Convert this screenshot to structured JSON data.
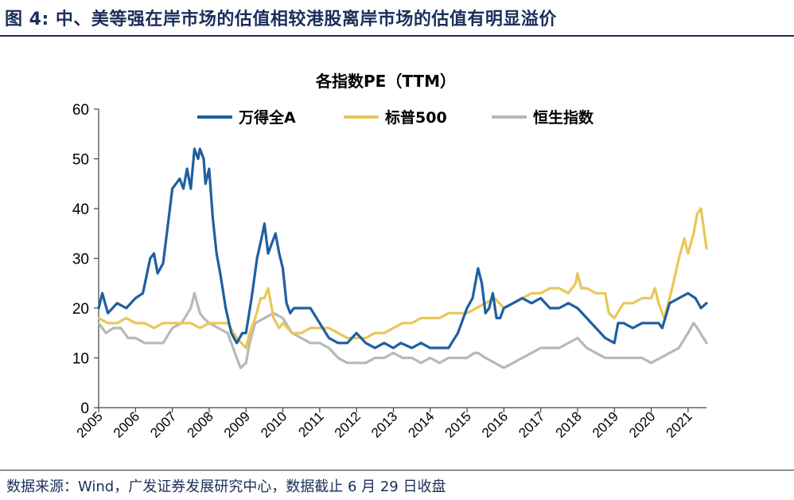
{
  "figure": {
    "title": "图 4: 中、美等强在岸市场的估值相较港股离岸市场的估值有明显溢价",
    "source": "数据来源：Wind，广发证券发展研究中心，数据截止 6 月 29 日收盘"
  },
  "chart_data": {
    "type": "line",
    "title": "各指数PE（TTM）",
    "xlabel": "",
    "ylabel": "",
    "ylim": [
      0,
      60
    ],
    "yticks": [
      0,
      10,
      20,
      30,
      40,
      50,
      60
    ],
    "xlim": [
      2005,
      2021.5
    ],
    "xticks": [
      "2005",
      "2006",
      "2007",
      "2008",
      "2009",
      "2010",
      "2011",
      "2012",
      "2013",
      "2014",
      "2015",
      "2016",
      "2017",
      "2018",
      "2019",
      "2020",
      "2021"
    ],
    "legend_position": "top",
    "grid": false,
    "series": [
      {
        "name": "万得全A",
        "color": "#1f5fa0",
        "x": [
          2005.0,
          2005.1,
          2005.25,
          2005.5,
          2005.75,
          2006.0,
          2006.2,
          2006.4,
          2006.5,
          2006.6,
          2006.75,
          2006.9,
          2007.0,
          2007.1,
          2007.2,
          2007.3,
          2007.4,
          2007.5,
          2007.6,
          2007.7,
          2007.75,
          2007.85,
          2007.9,
          2008.0,
          2008.1,
          2008.2,
          2008.3,
          2008.45,
          2008.6,
          2008.75,
          2008.9,
          2009.0,
          2009.15,
          2009.3,
          2009.45,
          2009.5,
          2009.6,
          2009.7,
          2009.8,
          2009.9,
          2010.0,
          2010.1,
          2010.2,
          2010.3,
          2010.5,
          2010.75,
          2011.0,
          2011.25,
          2011.5,
          2011.75,
          2012.0,
          2012.25,
          2012.5,
          2012.75,
          2013.0,
          2013.2,
          2013.5,
          2013.75,
          2014.0,
          2014.25,
          2014.5,
          2014.75,
          2015.0,
          2015.15,
          2015.3,
          2015.4,
          2015.5,
          2015.6,
          2015.7,
          2015.8,
          2015.9,
          2016.0,
          2016.25,
          2016.5,
          2016.75,
          2017.0,
          2017.25,
          2017.5,
          2017.75,
          2018.0,
          2018.25,
          2018.5,
          2018.75,
          2019.0,
          2019.1,
          2019.25,
          2019.5,
          2019.75,
          2020.0,
          2020.2,
          2020.3,
          2020.5,
          2020.75,
          2021.0,
          2021.2,
          2021.35,
          2021.5
        ],
        "values": [
          20,
          23,
          19,
          21,
          20,
          22,
          23,
          30,
          31,
          27,
          29,
          38,
          44,
          45,
          46,
          44,
          48,
          44,
          52,
          50,
          52,
          50,
          45,
          48,
          38,
          31,
          27,
          20,
          15,
          13,
          15,
          15,
          22,
          30,
          35,
          37,
          31,
          33,
          35,
          31,
          28,
          21,
          19,
          20,
          20,
          20,
          17,
          14,
          13,
          13,
          15,
          13,
          12,
          13,
          12,
          13,
          12,
          13,
          12,
          12,
          12,
          15,
          20,
          22,
          28,
          25,
          19,
          20,
          23,
          18,
          18,
          20,
          21,
          22,
          21,
          22,
          20,
          20,
          21,
          20,
          18,
          16,
          14,
          13,
          17,
          17,
          16,
          17,
          17,
          17,
          16,
          21,
          22,
          23,
          22,
          20,
          21
        ]
      },
      {
        "name": "标普500",
        "color": "#e8c75a",
        "x": [
          2005.0,
          2005.25,
          2005.5,
          2005.75,
          2006.0,
          2006.25,
          2006.5,
          2006.75,
          2007.0,
          2007.25,
          2007.5,
          2007.75,
          2008.0,
          2008.25,
          2008.5,
          2008.75,
          2009.0,
          2009.1,
          2009.25,
          2009.4,
          2009.5,
          2009.6,
          2009.75,
          2009.9,
          2010.0,
          2010.25,
          2010.5,
          2010.75,
          2011.0,
          2011.25,
          2011.5,
          2011.75,
          2012.0,
          2012.25,
          2012.5,
          2012.75,
          2013.0,
          2013.25,
          2013.5,
          2013.75,
          2014.0,
          2014.25,
          2014.5,
          2014.75,
          2015.0,
          2015.25,
          2015.5,
          2015.75,
          2016.0,
          2016.25,
          2016.5,
          2016.75,
          2017.0,
          2017.25,
          2017.5,
          2017.75,
          2017.85,
          2017.95,
          2018.0,
          2018.1,
          2018.25,
          2018.5,
          2018.75,
          2018.85,
          2019.0,
          2019.25,
          2019.5,
          2019.75,
          2020.0,
          2020.1,
          2020.2,
          2020.35,
          2020.5,
          2020.6,
          2020.75,
          2020.9,
          2021.0,
          2021.15,
          2021.25,
          2021.35,
          2021.5
        ],
        "values": [
          18,
          17,
          17,
          18,
          17,
          17,
          16,
          17,
          17,
          17,
          17,
          16,
          17,
          17,
          17,
          14,
          12,
          15,
          18,
          22,
          22,
          24,
          18,
          16,
          17,
          15,
          15,
          16,
          16,
          16,
          15,
          14,
          14,
          14,
          15,
          15,
          16,
          17,
          17,
          18,
          18,
          18,
          19,
          19,
          19,
          20,
          21,
          22,
          20,
          21,
          22,
          23,
          23,
          24,
          24,
          23,
          24,
          25,
          27,
          24,
          24,
          23,
          23,
          19,
          18,
          21,
          21,
          22,
          22,
          24,
          21,
          18,
          22,
          25,
          30,
          34,
          31,
          35,
          39,
          40,
          32
        ]
      },
      {
        "name": "恒生指数",
        "color": "#b8b8b8",
        "x": [
          2005.0,
          2005.2,
          2005.4,
          2005.6,
          2005.8,
          2006.0,
          2006.25,
          2006.5,
          2006.75,
          2007.0,
          2007.25,
          2007.5,
          2007.6,
          2007.75,
          2007.85,
          2008.0,
          2008.25,
          2008.5,
          2008.75,
          2008.85,
          2009.0,
          2009.1,
          2009.25,
          2009.5,
          2009.75,
          2010.0,
          2010.25,
          2010.5,
          2010.75,
          2011.0,
          2011.25,
          2011.5,
          2011.75,
          2012.0,
          2012.25,
          2012.5,
          2012.75,
          2013.0,
          2013.25,
          2013.5,
          2013.75,
          2014.0,
          2014.25,
          2014.5,
          2014.75,
          2015.0,
          2015.2,
          2015.3,
          2015.5,
          2015.75,
          2016.0,
          2016.25,
          2016.5,
          2016.75,
          2017.0,
          2017.25,
          2017.5,
          2017.75,
          2018.0,
          2018.25,
          2018.5,
          2018.75,
          2019.0,
          2019.25,
          2019.5,
          2019.75,
          2020.0,
          2020.25,
          2020.5,
          2020.75,
          2021.0,
          2021.15,
          2021.25,
          2021.5
        ],
        "values": [
          17,
          15,
          16,
          16,
          14,
          14,
          13,
          13,
          13,
          16,
          17,
          20,
          23,
          19,
          18,
          17,
          16,
          15,
          10,
          8,
          9,
          13,
          17,
          18,
          19,
          18,
          15,
          14,
          13,
          13,
          12,
          10,
          9,
          9,
          9,
          10,
          10,
          11,
          10,
          10,
          9,
          10,
          9,
          10,
          10,
          10,
          11,
          11,
          10,
          9,
          8,
          9,
          10,
          11,
          12,
          12,
          12,
          13,
          14,
          12,
          11,
          10,
          10,
          10,
          10,
          10,
          9,
          10,
          11,
          12,
          15,
          17,
          16,
          13
        ]
      }
    ]
  }
}
